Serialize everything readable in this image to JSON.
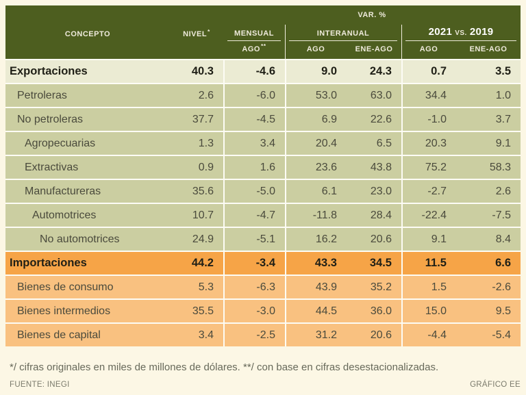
{
  "header": {
    "var_label": "VAR. %",
    "concepto": "CONCEPTO",
    "nivel": "NIVEL",
    "nivel_sup": "*",
    "mensual": "MENSUAL",
    "interanual": "INTERANUAL",
    "comp_year_left": "2021",
    "comp_vs": "VS.",
    "comp_year_right": "2019",
    "sub_mensual": "AGO",
    "sub_mensual_sup": "**",
    "sub_interanual_1": "AGO",
    "sub_interanual_2": "ENE-AGO",
    "sub_comp_1": "AGO",
    "sub_comp_2": "ENE-AGO"
  },
  "rows": [
    {
      "label": "Exportaciones",
      "style": "total-export",
      "indent": 0,
      "values": [
        "40.3",
        "-4.6",
        "9.0",
        "24.3",
        "0.7",
        "3.5"
      ]
    },
    {
      "label": "Petroleras",
      "style": "export",
      "indent": 1,
      "values": [
        "2.6",
        "-6.0",
        "53.0",
        "63.0",
        "34.4",
        "1.0"
      ]
    },
    {
      "label": "No petroleras",
      "style": "export",
      "indent": 1,
      "values": [
        "37.7",
        "-4.5",
        "6.9",
        "22.6",
        "-1.0",
        "3.7"
      ]
    },
    {
      "label": "Agropecuarias",
      "style": "export",
      "indent": 2,
      "values": [
        "1.3",
        "3.4",
        "20.4",
        "6.5",
        "20.3",
        "9.1"
      ]
    },
    {
      "label": "Extractivas",
      "style": "export",
      "indent": 2,
      "values": [
        "0.9",
        "1.6",
        "23.6",
        "43.8",
        "75.2",
        "58.3"
      ]
    },
    {
      "label": "Manufactureras",
      "style": "export",
      "indent": 2,
      "values": [
        "35.6",
        "-5.0",
        "6.1",
        "23.0",
        "-2.7",
        "2.6"
      ]
    },
    {
      "label": "Automotrices",
      "style": "export",
      "indent": 3,
      "values": [
        "10.7",
        "-4.7",
        "-11.8",
        "28.4",
        "-22.4",
        "-7.5"
      ]
    },
    {
      "label": "No automotrices",
      "style": "export",
      "indent": 4,
      "values": [
        "24.9",
        "-5.1",
        "16.2",
        "20.6",
        "9.1",
        "8.4"
      ]
    },
    {
      "label": "Importaciones",
      "style": "total-import",
      "indent": 0,
      "values": [
        "44.2",
        "-3.4",
        "43.3",
        "34.5",
        "11.5",
        "6.6"
      ]
    },
    {
      "label": "Bienes de consumo",
      "style": "import",
      "indent": 1,
      "values": [
        "5.3",
        "-6.3",
        "43.9",
        "35.2",
        "1.5",
        "-2.6"
      ]
    },
    {
      "label": "Bienes intermedios",
      "style": "import",
      "indent": 1,
      "values": [
        "35.5",
        "-3.0",
        "44.5",
        "36.0",
        "15.0",
        "9.5"
      ]
    },
    {
      "label": "Bienes de capital",
      "style": "import",
      "indent": 1,
      "values": [
        "3.4",
        "-2.5",
        "31.2",
        "20.6",
        "-4.4",
        "-5.4"
      ]
    }
  ],
  "footer": {
    "note": "*/ cifras originales en miles de millones de dólares. **/ con base en cifras desestacionalizadas.",
    "source": "FUENTE: INEGI",
    "credit": "GRÁFICO EE"
  },
  "colors": {
    "page_bg": "#fcf7e5",
    "header_bg": "#4d5e1f",
    "export_row": "#cbcea1",
    "export_total": "#ebebd3",
    "import_row": "#f9c180",
    "import_total": "#f6a447"
  },
  "chart_data": {
    "type": "table",
    "title": "VAR. %",
    "columns": [
      "CONCEPTO",
      "NIVEL*",
      "MENSUAL AGO**",
      "INTERANUAL AGO",
      "INTERANUAL ENE-AGO",
      "2021 VS. 2019 AGO",
      "2021 VS. 2019 ENE-AGO"
    ],
    "rows": [
      [
        "Exportaciones",
        40.3,
        -4.6,
        9.0,
        24.3,
        0.7,
        3.5
      ],
      [
        "Petroleras",
        2.6,
        -6.0,
        53.0,
        63.0,
        34.4,
        1.0
      ],
      [
        "No petroleras",
        37.7,
        -4.5,
        6.9,
        22.6,
        -1.0,
        3.7
      ],
      [
        "Agropecuarias",
        1.3,
        3.4,
        20.4,
        6.5,
        20.3,
        9.1
      ],
      [
        "Extractivas",
        0.9,
        1.6,
        23.6,
        43.8,
        75.2,
        58.3
      ],
      [
        "Manufactureras",
        35.6,
        -5.0,
        6.1,
        23.0,
        -2.7,
        2.6
      ],
      [
        "Automotrices",
        10.7,
        -4.7,
        -11.8,
        28.4,
        -22.4,
        -7.5
      ],
      [
        "No automotrices",
        24.9,
        -5.1,
        16.2,
        20.6,
        9.1,
        8.4
      ],
      [
        "Importaciones",
        44.2,
        -3.4,
        43.3,
        34.5,
        11.5,
        6.6
      ],
      [
        "Bienes de consumo",
        5.3,
        -6.3,
        43.9,
        35.2,
        1.5,
        -2.6
      ],
      [
        "Bienes intermedios",
        35.5,
        -3.0,
        44.5,
        36.0,
        15.0,
        9.5
      ],
      [
        "Bienes de capital",
        3.4,
        -2.5,
        31.2,
        20.6,
        -4.4,
        -5.4
      ]
    ],
    "note": "*/ cifras originales en miles de millones de dólares. **/ con base en cifras desestacionalizadas.",
    "source": "FUENTE: INEGI",
    "credit": "GRÁFICO EE"
  }
}
